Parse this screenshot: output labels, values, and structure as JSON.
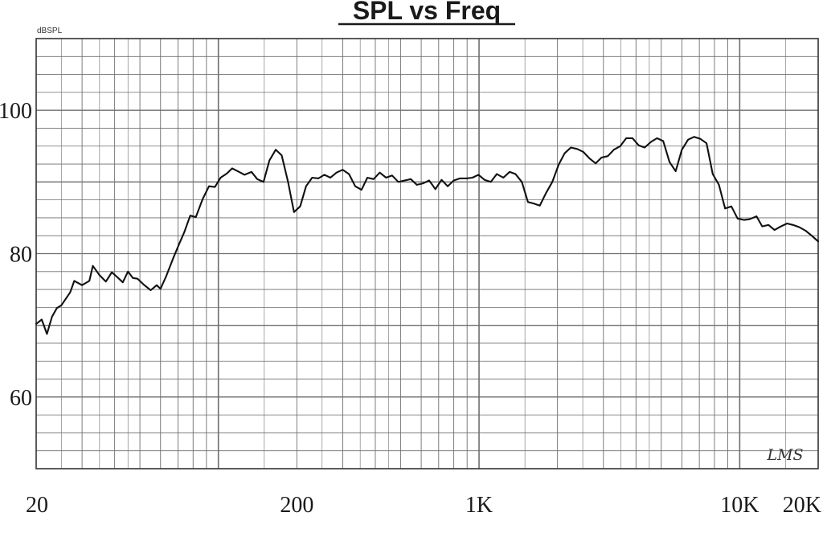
{
  "chart_data": {
    "type": "line",
    "title": "SPL vs Freq",
    "ylabel": "dBSPL",
    "xlabel": "",
    "x_scale": "log",
    "xlim": [
      20,
      20000
    ],
    "ylim": [
      50,
      110
    ],
    "grid": true,
    "x_tick_labels": [
      {
        "value": 20,
        "label": "20"
      },
      {
        "value": 200,
        "label": "200"
      },
      {
        "value": 1000,
        "label": "1K"
      },
      {
        "value": 10000,
        "label": "10K"
      },
      {
        "value": 20000,
        "label": "20K"
      }
    ],
    "y_tick_labels": [
      {
        "value": 60,
        "label": "60"
      },
      {
        "value": 80,
        "label": "80"
      },
      {
        "value": 100,
        "label": "100"
      }
    ],
    "watermark": "LMS",
    "colors": {
      "line": "#111111",
      "grid": "#6e6e6e",
      "background": "#ffffff"
    },
    "series": [
      {
        "x": [
          20,
          21,
          22,
          23,
          24,
          25,
          27,
          28,
          30,
          32,
          33,
          35,
          37,
          39,
          41,
          43,
          45,
          47,
          49,
          52,
          55,
          58,
          60,
          63,
          67,
          71,
          74,
          78,
          82,
          87,
          92,
          97,
          102,
          108,
          113,
          120,
          126,
          134,
          141,
          149,
          157,
          166,
          175,
          185,
          195,
          206,
          217,
          229,
          242,
          255,
          269,
          284,
          300,
          317,
          335,
          354,
          373,
          394,
          416,
          440,
          464,
          490,
          518,
          547,
          577,
          610,
          644,
          680,
          718,
          758,
          800,
          845,
          893,
          943,
          995,
          1050,
          1110,
          1170,
          1240,
          1310,
          1380,
          1460,
          1540,
          1620,
          1710,
          1810,
          1910,
          2020,
          2130,
          2250,
          2380,
          2510,
          2650,
          2800,
          2950,
          3120,
          3290,
          3480,
          3670,
          3880,
          4100,
          4320,
          4570,
          4820,
          5090,
          5380,
          5680,
          6000,
          6340,
          6690,
          7070,
          7460,
          7880,
          8320,
          8790,
          9290,
          9810,
          10400,
          10900,
          11600,
          12200,
          12900,
          13600,
          14400,
          15200,
          16000,
          16900,
          17900,
          18900,
          20000
        ],
        "y": [
          70.2,
          70.8,
          68.8,
          71.2,
          72.4,
          72.8,
          74.6,
          76.2,
          75.6,
          76.2,
          78.3,
          77.0,
          76.1,
          77.4,
          76.7,
          76.0,
          77.5,
          76.6,
          76.5,
          75.6,
          74.9,
          75.6,
          75.1,
          76.8,
          79.3,
          81.5,
          83.0,
          85.3,
          85.1,
          87.6,
          89.4,
          89.3,
          90.6,
          91.2,
          91.9,
          91.4,
          91.0,
          91.4,
          90.4,
          90.0,
          93.0,
          94.5,
          93.7,
          90.0,
          85.8,
          86.6,
          89.4,
          90.6,
          90.5,
          91.0,
          90.6,
          91.3,
          91.7,
          91.1,
          89.4,
          88.9,
          90.6,
          90.4,
          91.3,
          90.6,
          90.9,
          90.0,
          90.2,
          90.4,
          89.6,
          89.8,
          90.2,
          89.0,
          90.3,
          89.4,
          90.2,
          90.5,
          90.5,
          90.6,
          91.0,
          90.3,
          90.0,
          91.1,
          90.6,
          91.4,
          91.1,
          90.0,
          87.2,
          87.0,
          86.7,
          88.5,
          90.0,
          92.4,
          94.0,
          94.8,
          94.6,
          94.2,
          93.3,
          92.6,
          93.4,
          93.6,
          94.5,
          95.0,
          96.1,
          96.1,
          95.1,
          94.8,
          95.6,
          96.1,
          95.7,
          92.8,
          91.5,
          94.5,
          95.9,
          96.3,
          96.0,
          95.4,
          91.1,
          89.6,
          86.3,
          86.6,
          84.9,
          84.7,
          84.8,
          85.2,
          83.8,
          84.0,
          83.3,
          83.8,
          84.2,
          84.0,
          83.7,
          83.2,
          82.5,
          81.7
        ]
      }
    ]
  }
}
